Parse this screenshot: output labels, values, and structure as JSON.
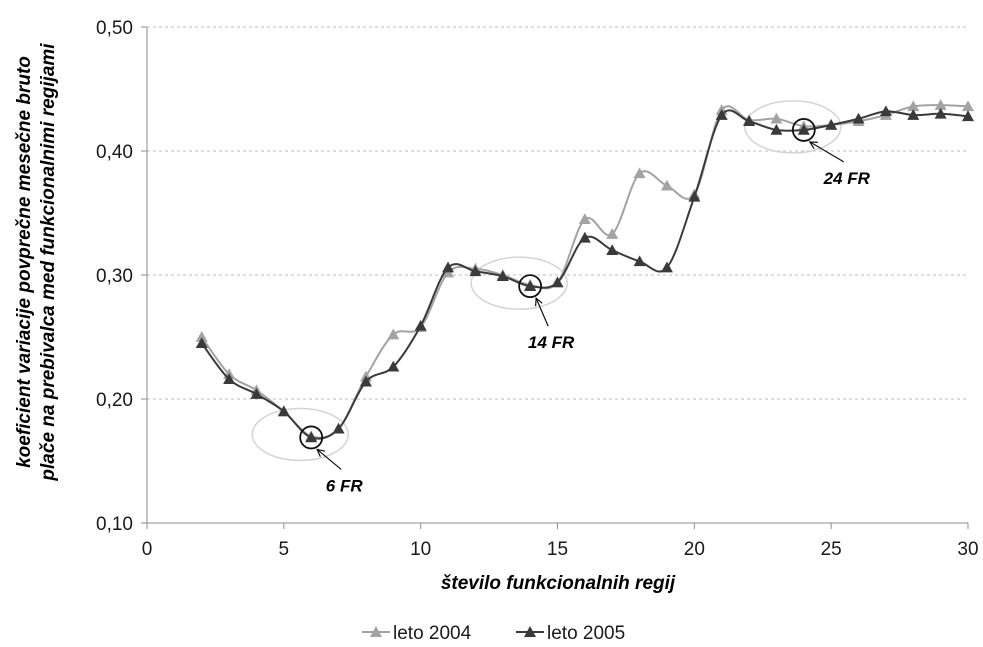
{
  "colors": {
    "series_2004": "#a3a3a3",
    "series_2005": "#3a3a3a",
    "gridline": "#bdbdbd",
    "highlight_ellipse": "#d4d4d4",
    "axis": "#8c8c8c"
  },
  "chart_data": {
    "type": "line",
    "title": "",
    "xlabel": "število funkcionalnih regij",
    "ylabel_line1": "koeficient variacije povprečne mesečne bruto",
    "ylabel_line2": "plače na prebivalca med funkcionalnimi regijami",
    "xlim": [
      0,
      30
    ],
    "ylim": [
      0.1,
      0.5
    ],
    "x_ticks": [
      0,
      5,
      10,
      15,
      20,
      25,
      30
    ],
    "x_tick_labels": [
      "0",
      "5",
      "10",
      "15",
      "20",
      "25",
      "30"
    ],
    "y_ticks": [
      0.1,
      0.2,
      0.3,
      0.4,
      0.5
    ],
    "y_tick_labels": [
      "0,10",
      "0,20",
      "0,30",
      "0,40",
      "0,50"
    ],
    "grid": "horizontal dashed",
    "legend_position": "bottom",
    "markers": "triangle",
    "series": [
      {
        "name": "leto 2004",
        "x": [
          2,
          3,
          4,
          5,
          6,
          7,
          8,
          9,
          10,
          11,
          12,
          13,
          14,
          15,
          16,
          17,
          18,
          19,
          20,
          21,
          22,
          23,
          24,
          25,
          26,
          27,
          28,
          29,
          30
        ],
        "values": [
          0.25,
          0.22,
          0.207,
          0.19,
          0.17,
          0.176,
          0.218,
          0.252,
          0.258,
          0.302,
          0.305,
          0.3,
          0.292,
          0.294,
          0.345,
          0.333,
          0.382,
          0.372,
          0.365,
          0.433,
          0.425,
          0.426,
          0.42,
          0.421,
          0.424,
          0.429,
          0.436,
          0.437,
          0.436
        ]
      },
      {
        "name": "leto 2005",
        "x": [
          2,
          3,
          4,
          5,
          6,
          7,
          8,
          9,
          10,
          11,
          12,
          13,
          14,
          15,
          16,
          17,
          18,
          19,
          20,
          21,
          22,
          23,
          24,
          25,
          26,
          27,
          28,
          29,
          30
        ],
        "values": [
          0.245,
          0.216,
          0.204,
          0.19,
          0.169,
          0.176,
          0.214,
          0.226,
          0.259,
          0.306,
          0.303,
          0.299,
          0.291,
          0.294,
          0.33,
          0.32,
          0.311,
          0.306,
          0.363,
          0.429,
          0.424,
          0.417,
          0.417,
          0.421,
          0.426,
          0.432,
          0.429,
          0.43,
          0.428
        ]
      }
    ],
    "annotations": [
      {
        "label": "6 FR",
        "x": 6,
        "y": 0.169
      },
      {
        "label": "14 FR",
        "x": 14,
        "y": 0.291
      },
      {
        "label": "24 FR",
        "x": 24,
        "y": 0.417
      }
    ]
  }
}
